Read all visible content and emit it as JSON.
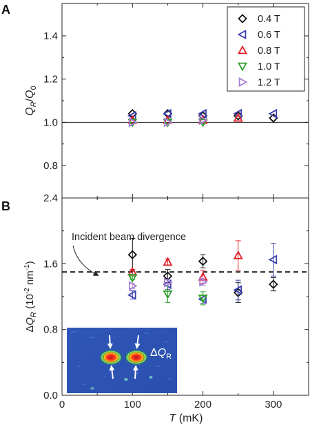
{
  "chart_data": [
    {
      "panel": "A",
      "type": "scatter",
      "ylabel": "Q_R/Q_0",
      "ylim": [
        0.65,
        1.55
      ],
      "xlim": [
        0,
        350
      ],
      "xticks": [
        0,
        100,
        200,
        300
      ],
      "yticks": [
        0.8,
        1.0,
        1.2,
        1.4
      ],
      "ytick_labels": [
        "0.8",
        "1.0",
        "1.2",
        "1.4"
      ],
      "reference_line": 1.0,
      "legend_position": "top-right",
      "series": [
        {
          "name": "0.4 T",
          "marker": "diamond",
          "color": "#111111",
          "x": [
            100,
            150,
            200,
            250,
            300
          ],
          "y": [
            1.04,
            1.04,
            1.03,
            1.03,
            1.02
          ]
        },
        {
          "name": "0.6 T",
          "marker": "triangle-left",
          "color": "#3a3fb0",
          "x": [
            100,
            150,
            200,
            250,
            300
          ],
          "y": [
            1.03,
            1.04,
            1.04,
            1.04,
            1.04
          ]
        },
        {
          "name": "0.8 T",
          "marker": "triangle-up",
          "color": "#e31b23",
          "x": [
            100,
            150,
            200,
            250
          ],
          "y": [
            1.01,
            1.01,
            1.01,
            1.02
          ]
        },
        {
          "name": "1.0 T",
          "marker": "triangle-down",
          "color": "#2aa02a",
          "x": [
            100,
            150,
            200
          ],
          "y": [
            1.0,
            1.0,
            1.0
          ]
        },
        {
          "name": "1.2 T",
          "marker": "triangle-right",
          "color": "#a67bd6",
          "x": [
            100,
            150,
            200
          ],
          "y": [
            1.0,
            1.0,
            1.01
          ]
        }
      ]
    },
    {
      "panel": "B",
      "type": "scatter",
      "ylabel": "ΔQ_R (10^-2 nm^-1)",
      "xlabel": "T (mK)",
      "ylim": [
        0,
        2.4
      ],
      "xlim": [
        0,
        350
      ],
      "xticks": [
        0,
        100,
        200,
        300
      ],
      "xtick_labels": [
        "0",
        "100",
        "200",
        "300"
      ],
      "yticks": [
        0,
        0.8,
        1.6,
        2.4
      ],
      "ytick_labels": [
        "0.0",
        "0.8",
        "1.6",
        "2.4"
      ],
      "reference_line": 1.5,
      "reference_label": "Incident beam divergence",
      "inset_label": "ΔQ_R",
      "series": [
        {
          "name": "0.4 T",
          "marker": "diamond",
          "color": "#111111",
          "x": [
            100,
            150,
            200,
            250,
            300
          ],
          "y": [
            1.71,
            1.45,
            1.63,
            1.25,
            1.35
          ],
          "err": [
            0.2,
            0.08,
            0.08,
            0.12,
            0.08
          ]
        },
        {
          "name": "0.6 T",
          "marker": "triangle-left",
          "color": "#3a3fb0",
          "x": [
            100,
            150,
            200,
            250,
            300
          ],
          "y": [
            1.22,
            1.35,
            1.17,
            1.28,
            1.65
          ],
          "err": [
            0.05,
            0.06,
            0.05,
            0.12,
            0.2
          ]
        },
        {
          "name": "0.8 T",
          "marker": "triangle-up",
          "color": "#e31b23",
          "x": [
            100,
            150,
            200,
            250
          ],
          "y": [
            1.5,
            1.62,
            1.44,
            1.7
          ],
          "err": [
            0.03,
            0.04,
            0.08,
            0.18
          ]
        },
        {
          "name": "1.0 T",
          "marker": "triangle-down",
          "color": "#2aa02a",
          "x": [
            100,
            150,
            200
          ],
          "y": [
            1.43,
            1.23,
            1.18
          ],
          "err": [
            0.02,
            0.1,
            0.08
          ]
        },
        {
          "name": "1.2 T",
          "marker": "triangle-right",
          "color": "#a67bd6",
          "x": [
            100,
            150,
            200
          ],
          "y": [
            1.33,
            1.37,
            1.38
          ],
          "err": [
            0.03,
            0.04,
            0.04
          ]
        }
      ]
    }
  ],
  "labels": {
    "panel_a": "A",
    "panel_b": "B",
    "xlabel_italic": "T",
    "xlabel_unit": " (mK)",
    "ylabel_a_q": "Q",
    "ylabel_a_r": "R",
    "ylabel_a_sep": "/",
    "ylabel_a_q0": "Q",
    "ylabel_a_0": "0",
    "ylabel_b_delta": "Δ",
    "ylabel_b_q": "Q",
    "ylabel_b_r": "R",
    "ylabel_b_unit_pre": "  (10",
    "ylabel_b_exp1": "-2",
    "ylabel_b_mid": " nm",
    "ylabel_b_exp2": "-1",
    "ylabel_b_close": ")",
    "annotation": "Incident beam divergence",
    "inset_delta": "Δ",
    "inset_q": "Q",
    "inset_r": "R"
  }
}
